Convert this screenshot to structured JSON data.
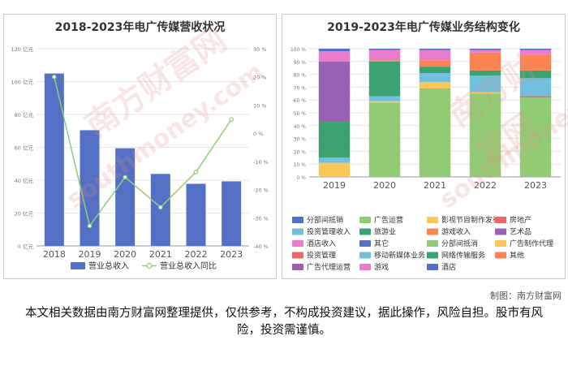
{
  "credit": "制图：南方财富网",
  "disclaimer": "本文相关数据由南方财富网整理提供，仅供参考，不构成投资建议，据此操作，风险自担。股市有风险，投资需谨慎。",
  "watermark": {
    "brand": "南方财富网",
    "site": "southmoney.com"
  },
  "chart_data": [
    {
      "type": "bar",
      "title": "2018-2023年电广传媒营收状况",
      "categories": [
        "2018",
        "2019",
        "2020",
        "2021",
        "2022",
        "2023"
      ],
      "series": [
        {
          "name": "营业总收入",
          "type": "bar",
          "axis": "left",
          "values": [
            104.9,
            70.4,
            59.4,
            43.8,
            37.8,
            39.3
          ]
        },
        {
          "name": "营业总收入同比",
          "type": "line",
          "axis": "right",
          "values": [
            20.0,
            -32.9,
            -15.6,
            -26.3,
            -13.8,
            4.9
          ]
        }
      ],
      "ylim_left": [
        0,
        120
      ],
      "yticks_left": [
        "0 亿元",
        "20 亿元",
        "40 亿元",
        "60 亿元",
        "80 亿元",
        "100 亿元",
        "120 亿元"
      ],
      "ylim_right": [
        -40,
        30
      ],
      "yticks_right": [
        "-40 %",
        "-30 %",
        "-20 %",
        "-10 %",
        "0 %",
        "10 %",
        "20 %",
        "30 %"
      ],
      "legend_position": "bottom",
      "colors": {
        "bar": "#5470c6",
        "line": "#91cc75"
      }
    },
    {
      "type": "bar",
      "stacked": true,
      "title": "2019-2023年电广传媒业务结构变化",
      "categories": [
        "2019",
        "2020",
        "2021",
        "2022",
        "2023"
      ],
      "ylim": [
        0,
        100
      ],
      "yticks": [
        "0 %",
        "10 %",
        "20 %",
        "30 %",
        "40 %",
        "50 %",
        "60 %",
        "70 %",
        "80 %",
        "90 %",
        "100 %"
      ],
      "series": [
        {
          "name": "分部间抵销",
          "color": "#5470c6",
          "values": [
            0,
            0,
            0,
            0,
            0
          ]
        },
        {
          "name": "广告运营",
          "color": "#91cc75",
          "values": [
            0,
            58,
            69,
            65,
            62
          ]
        },
        {
          "name": "影视节目制作发行",
          "color": "#fac858",
          "values": [
            0,
            0,
            0,
            0,
            0
          ]
        },
        {
          "name": "房地产",
          "color": "#ee6666",
          "values": [
            0,
            0,
            0,
            0,
            0
          ]
        },
        {
          "name": "投资管理收入",
          "color": "#73c0de",
          "values": [
            0,
            0,
            0,
            0,
            0
          ]
        },
        {
          "name": "旅游业",
          "color": "#3ba272",
          "values": [
            0,
            0,
            0,
            0,
            0
          ]
        },
        {
          "name": "游戏收入",
          "color": "#fc8452",
          "values": [
            0,
            0,
            0,
            0,
            0
          ]
        },
        {
          "name": "艺术品",
          "color": "#9a60b4",
          "values": [
            0,
            0,
            0,
            0,
            0
          ]
        },
        {
          "name": "酒店收入",
          "color": "#ea7ccc",
          "values": [
            0,
            0,
            0,
            0,
            0
          ]
        },
        {
          "name": "其它",
          "color": "#5470c6",
          "values": [
            0,
            0,
            0,
            0,
            0
          ]
        },
        {
          "name": "分部间抵消",
          "color": "#91cc75",
          "values": [
            0,
            0,
            0,
            0,
            0
          ]
        },
        {
          "name": "广告制作代理",
          "color": "#fac858",
          "values": [
            11,
            1,
            5,
            1,
            0
          ]
        },
        {
          "name": "投资管理",
          "color": "#ee6666",
          "values": [
            0,
            0,
            0,
            0,
            1
          ]
        },
        {
          "name": "移动新媒体业务",
          "color": "#73c0de",
          "values": [
            4,
            4,
            7,
            13,
            14
          ]
        },
        {
          "name": "网络传输服务",
          "color": "#3ba272",
          "values": [
            28,
            27,
            5,
            4,
            6
          ]
        },
        {
          "name": "其他",
          "color": "#fc8452",
          "values": [
            0,
            1,
            5,
            14,
            12
          ]
        },
        {
          "name": "广告代理运营",
          "color": "#9a60b4",
          "values": [
            47,
            0,
            0,
            0,
            0
          ]
        },
        {
          "name": "游戏",
          "color": "#ea7ccc",
          "values": [
            8,
            8,
            8,
            2,
            4
          ]
        },
        {
          "name": "酒店",
          "color": "#5470c6",
          "values": [
            2,
            1,
            1,
            1,
            1
          ]
        }
      ],
      "legend_position": "bottom"
    }
  ]
}
